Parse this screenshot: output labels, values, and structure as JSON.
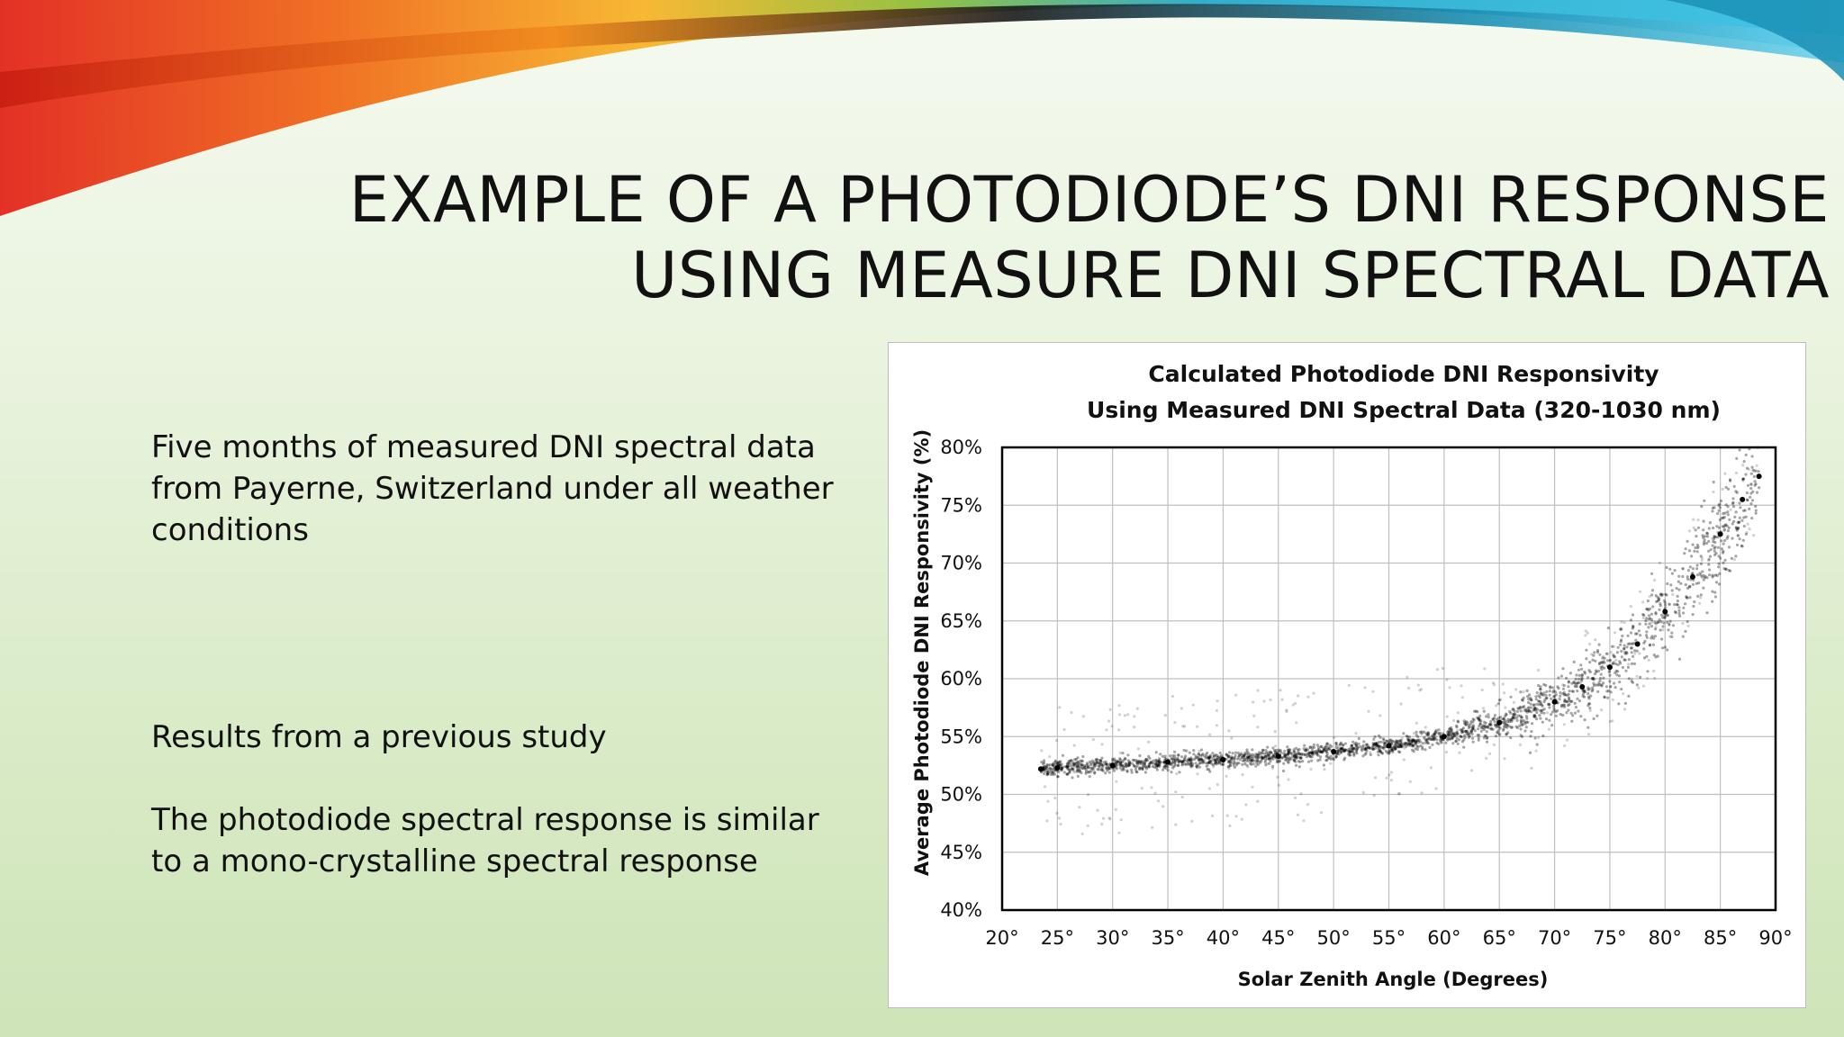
{
  "slide": {
    "title_line1": "EXAMPLE OF A PHOTODIODE’S DNI RESPONSE",
    "title_line2": "USING MEASURE DNI SPECTRAL DATA",
    "bullets": [
      "Five months of measured DNI spectral data from Payerne, Switzerland under all weather conditions",
      "Results from a previous study",
      "The photodiode spectral response is similar to a mono-crystalline spectral response"
    ],
    "colors": {
      "background": "#e3efd6",
      "text": "#111111"
    }
  },
  "chart_data": {
    "type": "scatter",
    "title": "Calculated Photodiode DNI Responsivity",
    "subtitle": "Using Measured DNI Spectral Data (320-1030 nm)",
    "xlabel": "Solar Zenith Angle (Degrees)",
    "ylabel": "Average Photodiode DNI Responsivity (%)",
    "xlim": [
      20,
      90
    ],
    "ylim": [
      40,
      80
    ],
    "x_ticks": [
      20,
      25,
      30,
      35,
      40,
      45,
      50,
      55,
      60,
      65,
      70,
      75,
      80,
      85,
      90
    ],
    "x_tick_labels": [
      "20°",
      "25°",
      "30°",
      "35°",
      "40°",
      "45°",
      "50°",
      "55°",
      "60°",
      "65°",
      "70°",
      "75°",
      "80°",
      "85°",
      "90°"
    ],
    "y_ticks": [
      40,
      45,
      50,
      55,
      60,
      65,
      70,
      75,
      80
    ],
    "y_tick_labels": [
      "40%",
      "45%",
      "50%",
      "55%",
      "60%",
      "65%",
      "70%",
      "75%",
      "80%"
    ],
    "grid": true,
    "legend": "none",
    "marker_color": "#000000",
    "series": [
      {
        "x": [
          23.5,
          25,
          30,
          35,
          40,
          45,
          50,
          55,
          60,
          65,
          70,
          72.5,
          75,
          77.5,
          80,
          82.5,
          85,
          87,
          88.5
        ],
        "y": [
          52.2,
          52.3,
          52.5,
          52.8,
          53.0,
          53.3,
          53.7,
          54.2,
          55.0,
          56.2,
          58.0,
          59.3,
          61.0,
          63.0,
          65.8,
          68.8,
          72.5,
          75.5,
          77.5
        ]
      }
    ]
  }
}
